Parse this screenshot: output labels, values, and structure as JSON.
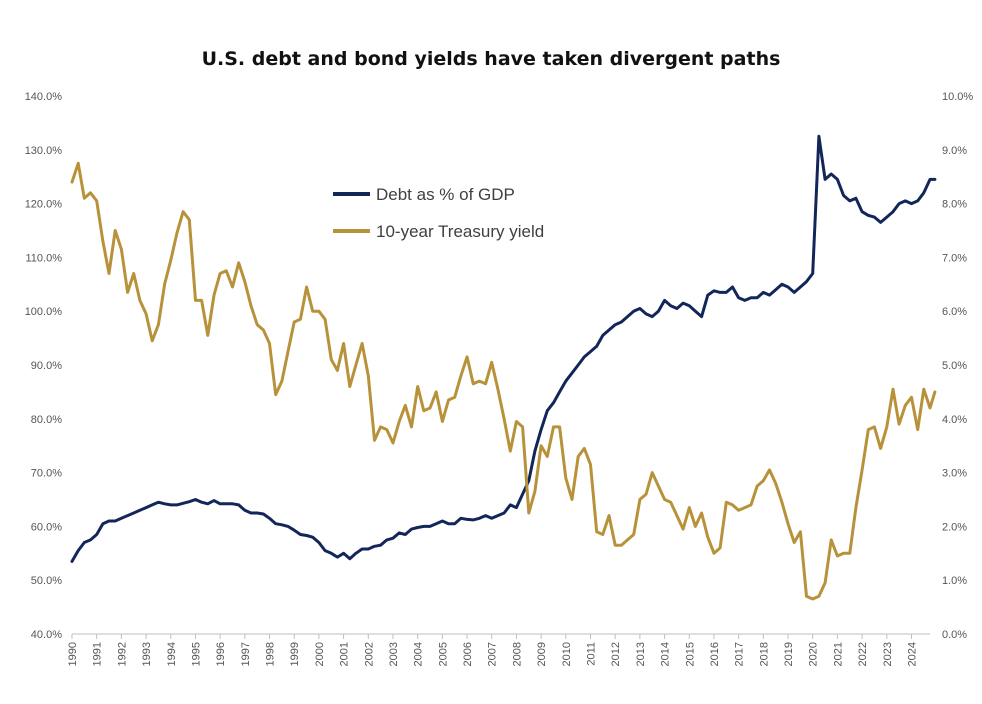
{
  "chart_data": {
    "type": "line",
    "title": "U.S. debt and bond yields have taken divergent paths",
    "xlabel": "",
    "ylabel": "",
    "x_range": [
      1990,
      2024.75
    ],
    "x_tick_labels": [
      "1990",
      "1991",
      "1992",
      "1993",
      "1994",
      "1995",
      "1996",
      "1997",
      "1998",
      "1999",
      "2000",
      "2001",
      "2002",
      "2003",
      "2004",
      "2005",
      "2006",
      "2007",
      "2008",
      "2009",
      "2010",
      "2011",
      "2012",
      "2013",
      "2014",
      "2015",
      "2016",
      "2017",
      "2018",
      "2019",
      "2020",
      "2021",
      "2022",
      "2023",
      "2024"
    ],
    "y_left": {
      "range": [
        40,
        140
      ],
      "tick_labels": [
        "40.0%",
        "50.0%",
        "60.0%",
        "70.0%",
        "80.0%",
        "90.0%",
        "100.0%",
        "110.0%",
        "120.0%",
        "130.0%",
        "140.0%"
      ]
    },
    "y_right": {
      "range": [
        0,
        10
      ],
      "tick_labels": [
        "0.0%",
        "1.0%",
        "2.0%",
        "3.0%",
        "4.0%",
        "5.0%",
        "6.0%",
        "7.0%",
        "8.0%",
        "9.0%",
        "10.0%"
      ]
    },
    "grid": false,
    "legend_position": "upper-center",
    "series": [
      {
        "name": "Debt as % of GDP",
        "axis": "left",
        "color": "#13265a",
        "points": [
          [
            1990,
            53.5
          ],
          [
            1990.25,
            55.5
          ],
          [
            1990.5,
            57
          ],
          [
            1990.75,
            57.5
          ],
          [
            1991,
            58.5
          ],
          [
            1991.25,
            60.5
          ],
          [
            1991.5,
            61
          ],
          [
            1991.75,
            61
          ],
          [
            1992,
            61.5
          ],
          [
            1992.25,
            62
          ],
          [
            1992.5,
            62.5
          ],
          [
            1992.75,
            63
          ],
          [
            1993,
            63.5
          ],
          [
            1993.25,
            64
          ],
          [
            1993.5,
            64.5
          ],
          [
            1993.75,
            64.2
          ],
          [
            1994,
            64
          ],
          [
            1994.25,
            64
          ],
          [
            1994.5,
            64.3
          ],
          [
            1994.75,
            64.6
          ],
          [
            1995,
            65
          ],
          [
            1995.25,
            64.5
          ],
          [
            1995.5,
            64.2
          ],
          [
            1995.75,
            64.8
          ],
          [
            1996,
            64.2
          ],
          [
            1996.25,
            64.2
          ],
          [
            1996.5,
            64.2
          ],
          [
            1996.75,
            64
          ],
          [
            1997,
            63
          ],
          [
            1997.25,
            62.5
          ],
          [
            1997.5,
            62.5
          ],
          [
            1997.75,
            62.3
          ],
          [
            1998,
            61.5
          ],
          [
            1998.25,
            60.5
          ],
          [
            1998.5,
            60.3
          ],
          [
            1998.75,
            60
          ],
          [
            1999,
            59.3
          ],
          [
            1999.25,
            58.5
          ],
          [
            1999.5,
            58.3
          ],
          [
            1999.75,
            58
          ],
          [
            2000,
            57
          ],
          [
            2000.25,
            55.5
          ],
          [
            2000.5,
            55
          ],
          [
            2000.75,
            54.3
          ],
          [
            2001,
            55
          ],
          [
            2001.25,
            54
          ],
          [
            2001.5,
            55
          ],
          [
            2001.75,
            55.8
          ],
          [
            2002,
            55.8
          ],
          [
            2002.25,
            56.3
          ],
          [
            2002.5,
            56.5
          ],
          [
            2002.75,
            57.5
          ],
          [
            2003,
            57.8
          ],
          [
            2003.25,
            58.8
          ],
          [
            2003.5,
            58.5
          ],
          [
            2003.75,
            59.5
          ],
          [
            2004,
            59.8
          ],
          [
            2004.25,
            60
          ],
          [
            2004.5,
            60
          ],
          [
            2004.75,
            60.5
          ],
          [
            2005,
            61
          ],
          [
            2005.25,
            60.5
          ],
          [
            2005.5,
            60.5
          ],
          [
            2005.75,
            61.5
          ],
          [
            2006,
            61.3
          ],
          [
            2006.25,
            61.2
          ],
          [
            2006.5,
            61.5
          ],
          [
            2006.75,
            62
          ],
          [
            2007,
            61.5
          ],
          [
            2007.25,
            62
          ],
          [
            2007.5,
            62.5
          ],
          [
            2007.75,
            64
          ],
          [
            2008,
            63.5
          ],
          [
            2008.25,
            66
          ],
          [
            2008.5,
            68.5
          ],
          [
            2008.75,
            74
          ],
          [
            2009,
            78
          ],
          [
            2009.25,
            81.5
          ],
          [
            2009.5,
            83
          ],
          [
            2009.75,
            85
          ],
          [
            2010,
            87
          ],
          [
            2010.25,
            88.5
          ],
          [
            2010.5,
            90
          ],
          [
            2010.75,
            91.5
          ],
          [
            2011,
            92.5
          ],
          [
            2011.25,
            93.5
          ],
          [
            2011.5,
            95.5
          ],
          [
            2011.75,
            96.5
          ],
          [
            2012,
            97.5
          ],
          [
            2012.25,
            98
          ],
          [
            2012.5,
            99
          ],
          [
            2012.75,
            100
          ],
          [
            2013,
            100.5
          ],
          [
            2013.25,
            99.5
          ],
          [
            2013.5,
            99
          ],
          [
            2013.75,
            100
          ],
          [
            2014,
            102
          ],
          [
            2014.25,
            101
          ],
          [
            2014.5,
            100.5
          ],
          [
            2014.75,
            101.5
          ],
          [
            2015,
            101
          ],
          [
            2015.25,
            100
          ],
          [
            2015.5,
            99
          ],
          [
            2015.75,
            103
          ],
          [
            2016,
            103.8
          ],
          [
            2016.25,
            103.5
          ],
          [
            2016.5,
            103.5
          ],
          [
            2016.75,
            104.5
          ],
          [
            2017,
            102.5
          ],
          [
            2017.25,
            102
          ],
          [
            2017.5,
            102.5
          ],
          [
            2017.75,
            102.5
          ],
          [
            2018,
            103.5
          ],
          [
            2018.25,
            103
          ],
          [
            2018.5,
            104
          ],
          [
            2018.75,
            105
          ],
          [
            2019,
            104.5
          ],
          [
            2019.25,
            103.5
          ],
          [
            2019.5,
            104.5
          ],
          [
            2019.75,
            105.5
          ],
          [
            2020,
            107
          ],
          [
            2020.25,
            132.5
          ],
          [
            2020.5,
            124.5
          ],
          [
            2020.75,
            125.5
          ],
          [
            2021,
            124.5
          ],
          [
            2021.25,
            121.5
          ],
          [
            2021.5,
            120.5
          ],
          [
            2021.75,
            121
          ],
          [
            2022,
            118.5
          ],
          [
            2022.25,
            117.8
          ],
          [
            2022.5,
            117.5
          ],
          [
            2022.75,
            116.5
          ],
          [
            2023,
            117.5
          ],
          [
            2023.25,
            118.5
          ],
          [
            2023.5,
            120
          ],
          [
            2023.75,
            120.5
          ],
          [
            2024,
            120
          ],
          [
            2024.25,
            120.5
          ],
          [
            2024.5,
            122
          ],
          [
            2024.75,
            124.5
          ],
          [
            2024.95,
            124.5
          ]
        ]
      },
      {
        "name": "10-year Treasury yield",
        "axis": "right",
        "color": "#b8923a",
        "points": [
          [
            1990,
            8.4
          ],
          [
            1990.25,
            8.75
          ],
          [
            1990.5,
            8.1
          ],
          [
            1990.75,
            8.2
          ],
          [
            1991,
            8.05
          ],
          [
            1991.25,
            7.3
          ],
          [
            1991.5,
            6.7
          ],
          [
            1991.75,
            7.5
          ],
          [
            1992,
            7.15
          ],
          [
            1992.25,
            6.35
          ],
          [
            1992.5,
            6.7
          ],
          [
            1992.75,
            6.2
          ],
          [
            1993,
            5.95
          ],
          [
            1993.25,
            5.45
          ],
          [
            1993.5,
            5.75
          ],
          [
            1993.75,
            6.5
          ],
          [
            1994,
            6.95
          ],
          [
            1994.25,
            7.45
          ],
          [
            1994.5,
            7.85
          ],
          [
            1994.75,
            7.7
          ],
          [
            1995,
            6.2
          ],
          [
            1995.25,
            6.2
          ],
          [
            1995.5,
            5.55
          ],
          [
            1995.75,
            6.3
          ],
          [
            1996,
            6.7
          ],
          [
            1996.25,
            6.75
          ],
          [
            1996.5,
            6.45
          ],
          [
            1996.75,
            6.9
          ],
          [
            1997,
            6.55
          ],
          [
            1997.25,
            6.1
          ],
          [
            1997.5,
            5.75
          ],
          [
            1997.75,
            5.65
          ],
          [
            1998,
            5.4
          ],
          [
            1998.25,
            4.45
          ],
          [
            1998.5,
            4.7
          ],
          [
            1998.75,
            5.25
          ],
          [
            1999,
            5.8
          ],
          [
            1999.25,
            5.85
          ],
          [
            1999.5,
            6.45
          ],
          [
            1999.75,
            6.0
          ],
          [
            2000,
            6.0
          ],
          [
            2000.25,
            5.85
          ],
          [
            2000.5,
            5.1
          ],
          [
            2000.75,
            4.9
          ],
          [
            2001,
            5.4
          ],
          [
            2001.25,
            4.6
          ],
          [
            2001.5,
            5.0
          ],
          [
            2001.75,
            5.4
          ],
          [
            2002,
            4.8
          ],
          [
            2002.25,
            3.6
          ],
          [
            2002.5,
            3.85
          ],
          [
            2002.75,
            3.8
          ],
          [
            2003,
            3.55
          ],
          [
            2003.25,
            3.95
          ],
          [
            2003.5,
            4.25
          ],
          [
            2003.75,
            3.85
          ],
          [
            2004,
            4.6
          ],
          [
            2004.25,
            4.15
          ],
          [
            2004.5,
            4.2
          ],
          [
            2004.75,
            4.5
          ],
          [
            2005,
            3.95
          ],
          [
            2005.25,
            4.35
          ],
          [
            2005.5,
            4.4
          ],
          [
            2005.75,
            4.8
          ],
          [
            2006,
            5.15
          ],
          [
            2006.25,
            4.65
          ],
          [
            2006.5,
            4.7
          ],
          [
            2006.75,
            4.65
          ],
          [
            2007,
            5.05
          ],
          [
            2007.25,
            4.55
          ],
          [
            2007.5,
            4.0
          ],
          [
            2007.75,
            3.4
          ],
          [
            2008,
            3.95
          ],
          [
            2008.25,
            3.85
          ],
          [
            2008.5,
            2.25
          ],
          [
            2008.75,
            2.65
          ],
          [
            2009,
            3.5
          ],
          [
            2009.25,
            3.3
          ],
          [
            2009.5,
            3.85
          ],
          [
            2009.75,
            3.85
          ],
          [
            2010,
            2.9
          ],
          [
            2010.25,
            2.5
          ],
          [
            2010.5,
            3.3
          ],
          [
            2010.75,
            3.45
          ],
          [
            2011,
            3.15
          ],
          [
            2011.25,
            1.9
          ],
          [
            2011.5,
            1.85
          ],
          [
            2011.75,
            2.2
          ],
          [
            2012,
            1.65
          ],
          [
            2012.25,
            1.65
          ],
          [
            2012.5,
            1.75
          ],
          [
            2012.75,
            1.85
          ],
          [
            2013,
            2.5
          ],
          [
            2013.25,
            2.6
          ],
          [
            2013.5,
            3.0
          ],
          [
            2013.75,
            2.75
          ],
          [
            2014,
            2.5
          ],
          [
            2014.25,
            2.45
          ],
          [
            2014.5,
            2.2
          ],
          [
            2014.75,
            1.95
          ],
          [
            2015,
            2.35
          ],
          [
            2015.25,
            2.0
          ],
          [
            2015.5,
            2.25
          ],
          [
            2015.75,
            1.8
          ],
          [
            2016,
            1.5
          ],
          [
            2016.25,
            1.6
          ],
          [
            2016.5,
            2.45
          ],
          [
            2016.75,
            2.4
          ],
          [
            2017,
            2.3
          ],
          [
            2017.25,
            2.35
          ],
          [
            2017.5,
            2.4
          ],
          [
            2017.75,
            2.75
          ],
          [
            2018,
            2.85
          ],
          [
            2018.25,
            3.05
          ],
          [
            2018.5,
            2.8
          ],
          [
            2018.75,
            2.45
          ],
          [
            2019,
            2.05
          ],
          [
            2019.25,
            1.7
          ],
          [
            2019.5,
            1.9
          ],
          [
            2019.75,
            0.7
          ],
          [
            2020,
            0.65
          ],
          [
            2020.25,
            0.7
          ],
          [
            2020.5,
            0.95
          ],
          [
            2020.75,
            1.75
          ],
          [
            2021,
            1.45
          ],
          [
            2021.25,
            1.5
          ],
          [
            2021.5,
            1.5
          ],
          [
            2021.75,
            2.35
          ],
          [
            2022,
            3.05
          ],
          [
            2022.25,
            3.8
          ],
          [
            2022.5,
            3.85
          ],
          [
            2022.75,
            3.45
          ],
          [
            2023,
            3.85
          ],
          [
            2023.25,
            4.55
          ],
          [
            2023.5,
            3.9
          ],
          [
            2023.75,
            4.25
          ],
          [
            2024,
            4.4
          ],
          [
            2024.25,
            3.8
          ],
          [
            2024.5,
            4.55
          ],
          [
            2024.75,
            4.2
          ],
          [
            2024.95,
            4.5
          ]
        ]
      }
    ]
  }
}
